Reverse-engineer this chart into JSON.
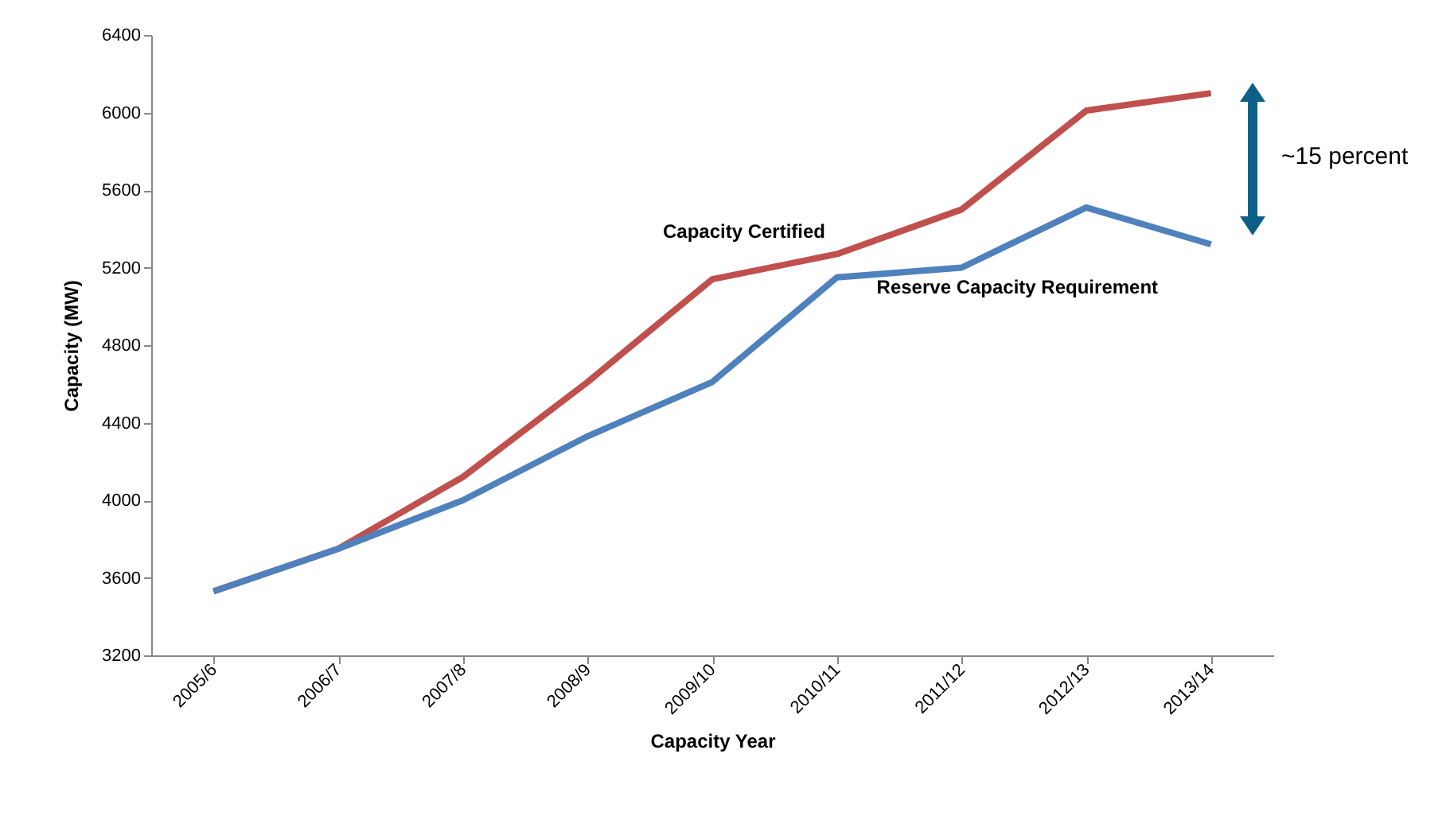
{
  "chart_data": {
    "type": "line",
    "xlabel": "Capacity Year",
    "ylabel": "Capacity (MW)",
    "categories": [
      "2005/6",
      "2006/7",
      "2007/8",
      "2008/9",
      "2009/10",
      "2010/11",
      "2011/12",
      "2012/13",
      "2013/14"
    ],
    "series": [
      {
        "name": "Capacity Certified",
        "color": "#c0504d",
        "values": [
          3530,
          3750,
          4120,
          4610,
          5140,
          5270,
          5500,
          6010,
          6100
        ]
      },
      {
        "name": "Reserve Capacity Requirement",
        "color": "#4f81bd",
        "values": [
          3530,
          3750,
          4000,
          4330,
          4610,
          5150,
          5200,
          5510,
          5320
        ]
      }
    ],
    "ylim": [
      3200,
      6400
    ],
    "yticks": [
      3200,
      3600,
      4000,
      4400,
      4800,
      5200,
      5600,
      6000,
      6400
    ],
    "marker": "none",
    "line_style": "solid",
    "annotations": [
      "~15 percent"
    ]
  }
}
